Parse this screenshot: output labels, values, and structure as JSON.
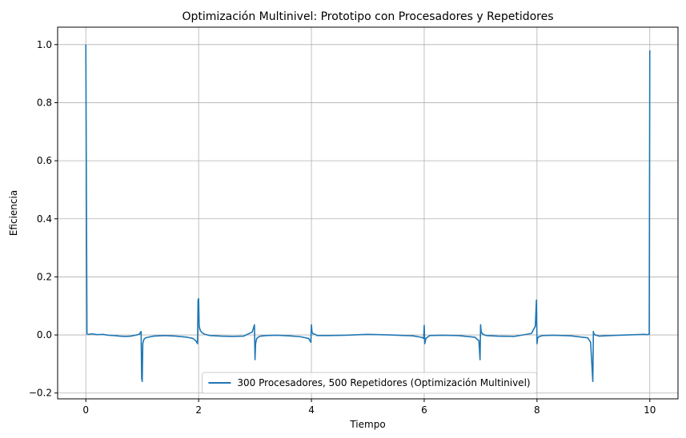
{
  "chart_data": {
    "type": "line",
    "title": "Optimización Multinivel: Prototipo con Procesadores y Repetidores",
    "xlabel": "Tiempo",
    "ylabel": "Eficiencia",
    "xlim": [
      -0.5,
      10.5
    ],
    "ylim": [
      -0.22,
      1.06
    ],
    "xticks": [
      0,
      2,
      4,
      6,
      8,
      10
    ],
    "yticks": [
      -0.2,
      0.0,
      0.2,
      0.4,
      0.6,
      0.8,
      1.0
    ],
    "xtick_labels": [
      "0",
      "2",
      "4",
      "6",
      "8",
      "10"
    ],
    "ytick_labels": [
      "−0.2",
      "0.0",
      "0.2",
      "0.4",
      "0.6",
      "0.8",
      "1.0"
    ],
    "grid": true,
    "legend_position": "lower-center",
    "series": [
      {
        "name": "300 Procesadores, 500 Repetidores (Optimización Multinivel)",
        "color": "#1f77b4",
        "x": [
          0.0,
          0.02,
          0.05,
          0.1,
          0.2,
          0.3,
          0.4,
          0.5,
          0.6,
          0.7,
          0.8,
          0.9,
          0.95,
          0.98,
          0.99,
          1.0,
          1.01,
          1.03,
          1.06,
          1.1,
          1.2,
          1.4,
          1.6,
          1.8,
          1.9,
          1.95,
          1.98,
          1.99,
          2.0,
          2.01,
          2.03,
          2.06,
          2.1,
          2.2,
          2.4,
          2.6,
          2.8,
          2.95,
          2.99,
          3.0,
          3.01,
          3.03,
          3.07,
          3.1,
          3.2,
          3.4,
          3.6,
          3.8,
          3.95,
          3.99,
          4.0,
          4.01,
          4.03,
          4.07,
          4.1,
          4.3,
          4.6,
          5.0,
          5.4,
          5.8,
          5.95,
          5.99,
          6.0,
          6.01,
          6.03,
          6.07,
          6.1,
          6.3,
          6.6,
          6.9,
          6.97,
          6.99,
          7.0,
          7.01,
          7.03,
          7.07,
          7.1,
          7.3,
          7.6,
          7.9,
          7.97,
          7.99,
          8.0,
          8.01,
          8.03,
          8.07,
          8.1,
          8.3,
          8.6,
          8.9,
          8.95,
          8.99,
          9.0,
          9.01,
          9.03,
          9.07,
          9.1,
          9.3,
          9.6,
          9.9,
          9.95,
          9.98,
          9.99,
          10.0
        ],
        "y": [
          1.0,
          0.004,
          0.002,
          0.004,
          0.001,
          0.002,
          -0.001,
          -0.002,
          -0.004,
          -0.005,
          -0.004,
          0.0,
          0.003,
          0.012,
          -0.15,
          -0.16,
          -0.03,
          -0.015,
          -0.01,
          -0.008,
          -0.004,
          -0.002,
          -0.004,
          -0.008,
          -0.012,
          -0.02,
          -0.03,
          0.12,
          0.125,
          0.03,
          0.015,
          0.008,
          0.003,
          -0.002,
          -0.004,
          -0.005,
          -0.004,
          0.01,
          0.035,
          -0.085,
          -0.03,
          -0.012,
          -0.006,
          -0.004,
          -0.002,
          -0.001,
          -0.003,
          -0.006,
          -0.012,
          -0.025,
          0.035,
          0.01,
          0.004,
          0.002,
          -0.002,
          -0.002,
          -0.001,
          0.002,
          0.0,
          -0.003,
          -0.008,
          -0.012,
          0.033,
          -0.03,
          -0.012,
          -0.006,
          -0.002,
          -0.001,
          -0.002,
          -0.008,
          -0.02,
          -0.085,
          0.035,
          0.012,
          0.004,
          0.0,
          -0.002,
          -0.004,
          -0.005,
          0.005,
          0.03,
          0.12,
          -0.03,
          -0.012,
          -0.006,
          -0.004,
          -0.002,
          -0.001,
          -0.003,
          -0.01,
          -0.025,
          -0.16,
          0.012,
          0.004,
          0.0,
          -0.002,
          -0.004,
          -0.002,
          0.0,
          0.002,
          0.001,
          0.002,
          0.003,
          0.98
        ]
      }
    ]
  }
}
